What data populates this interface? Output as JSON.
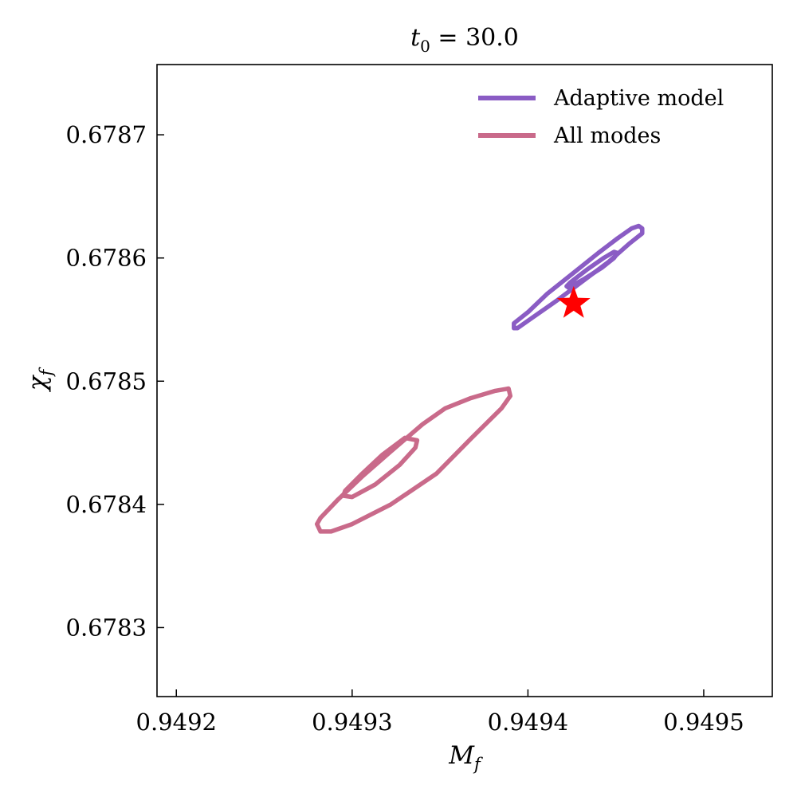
{
  "chart_data": {
    "type": "contour",
    "title": {
      "var": "t",
      "sub": "0",
      "rest": " = 30.0"
    },
    "xlabel": {
      "var": "M",
      "sub": "f"
    },
    "ylabel": {
      "var": "χ",
      "sub": "f"
    },
    "xlim": [
      0.949189,
      0.949539
    ],
    "ylim": [
      0.678244,
      0.678757
    ],
    "xticks": [
      0.9492,
      0.9493,
      0.9494,
      0.9495
    ],
    "xtick_labels": [
      "0.9492",
      "0.9493",
      "0.9494",
      "0.9495"
    ],
    "yticks": [
      0.6783,
      0.6784,
      0.6785,
      0.6786,
      0.6787
    ],
    "ytick_labels": [
      "0.6783",
      "0.6784",
      "0.6785",
      "0.6786",
      "0.6787"
    ],
    "grid": false,
    "legend_position": "top-right",
    "series": [
      {
        "name": "Adaptive model",
        "color": "#8a5cc4",
        "contours": [
          [
            [
              0.949392,
              0.678543
            ],
            [
              0.949392,
              0.678547
            ],
            [
              0.9494,
              0.678556
            ],
            [
              0.949411,
              0.678571
            ],
            [
              0.949426,
              0.678588
            ],
            [
              0.94944,
              0.678604
            ],
            [
              0.949451,
              0.678616
            ],
            [
              0.949459,
              0.678624
            ],
            [
              0.949463,
              0.678626
            ],
            [
              0.949465,
              0.678624
            ],
            [
              0.949465,
              0.67862
            ],
            [
              0.949458,
              0.678612
            ],
            [
              0.949446,
              0.678597
            ],
            [
              0.949431,
              0.678581
            ],
            [
              0.949416,
              0.678565
            ],
            [
              0.949402,
              0.678551
            ],
            [
              0.949394,
              0.678543
            ]
          ],
          [
            [
              0.949423,
              0.678576
            ],
            [
              0.949432,
              0.678583
            ],
            [
              0.949442,
              0.678592
            ],
            [
              0.949449,
              0.6786
            ],
            [
              0.949451,
              0.678604
            ],
            [
              0.949449,
              0.678605
            ],
            [
              0.949443,
              0.6786
            ],
            [
              0.949434,
              0.678591
            ],
            [
              0.949424,
              0.67858
            ],
            [
              0.949422,
              0.678577
            ]
          ]
        ]
      },
      {
        "name": "All modes",
        "color": "#c96a8a",
        "contours": [
          [
            [
              0.949282,
              0.678378
            ],
            [
              0.94928,
              0.678384
            ],
            [
              0.949282,
              0.678389
            ],
            [
              0.949292,
              0.678404
            ],
            [
              0.949306,
              0.678423
            ],
            [
              0.949322,
              0.678443
            ],
            [
              0.94934,
              0.678465
            ],
            [
              0.949353,
              0.678478
            ],
            [
              0.949367,
              0.678486
            ],
            [
              0.949381,
              0.678492
            ],
            [
              0.949389,
              0.678494
            ],
            [
              0.94939,
              0.678488
            ],
            [
              0.949385,
              0.678478
            ],
            [
              0.949368,
              0.678454
            ],
            [
              0.949348,
              0.678425
            ],
            [
              0.949322,
              0.6784
            ],
            [
              0.9493,
              0.678384
            ],
            [
              0.949288,
              0.678378
            ]
          ],
          [
            [
              0.949295,
              0.678407
            ],
            [
              0.949296,
              0.678411
            ],
            [
              0.949305,
              0.678424
            ],
            [
              0.949317,
              0.67844
            ],
            [
              0.94933,
              0.678454
            ],
            [
              0.949337,
              0.678452
            ],
            [
              0.949336,
              0.678446
            ],
            [
              0.949327,
              0.678432
            ],
            [
              0.949313,
              0.678416
            ],
            [
              0.9493,
              0.678406
            ]
          ]
        ]
      }
    ],
    "marker": {
      "type": "star",
      "x": 0.949426,
      "y": 0.678563,
      "color": "#ff0000"
    }
  }
}
